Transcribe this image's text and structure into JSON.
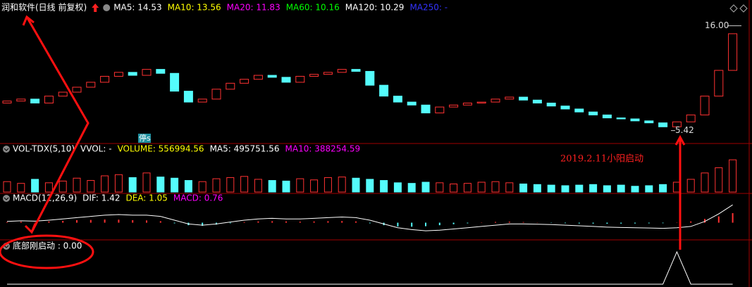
{
  "chart_data": [
    {
      "type": "candlestick",
      "legend": [
        {
          "text": "润和软件(日线 前复权)",
          "color": "#ffffff"
        },
        {
          "text": "MA5: 14.53",
          "color": "#ffffff"
        },
        {
          "text": "MA10: 13.56",
          "color": "#ffff00"
        },
        {
          "text": "MA20: 11.83",
          "color": "#ff00ff"
        },
        {
          "text": "MA60: 10.16",
          "color": "#00ff00"
        },
        {
          "text": "MA120: 10.29",
          "color": "#ffffff"
        },
        {
          "text": "MA250: -",
          "color": "#3333ff"
        }
      ],
      "open": [
        8.2,
        8.4,
        8.6,
        8.2,
        8.9,
        9.3,
        9.8,
        10.3,
        10.9,
        11.3,
        11.0,
        11.6,
        11.2,
        9.4,
        8.3,
        8.6,
        9.6,
        10.2,
        10.6,
        11.0,
        10.8,
        10.3,
        10.9,
        11.1,
        11.3,
        11.6,
        11.4,
        10.0,
        8.9,
        8.3,
        8.0,
        7.2,
        7.8,
        8.0,
        8.2,
        8.3,
        8.6,
        8.8,
        8.5,
        8.2,
        7.9,
        7.6,
        7.3,
        7.0,
        6.7,
        6.6,
        6.4,
        6.2,
        5.8,
        6.3,
        7.0,
        8.9,
        11.5
      ],
      "close": [
        8.4,
        8.6,
        8.2,
        8.9,
        9.3,
        9.8,
        10.3,
        10.9,
        11.3,
        11.0,
        11.6,
        11.2,
        9.4,
        8.3,
        8.6,
        9.6,
        10.2,
        10.6,
        11.0,
        10.8,
        10.3,
        10.9,
        11.1,
        11.3,
        11.6,
        11.4,
        10.0,
        8.9,
        8.3,
        8.0,
        7.2,
        7.8,
        8.0,
        8.2,
        8.3,
        8.6,
        8.8,
        8.5,
        8.2,
        7.9,
        7.6,
        7.3,
        7.0,
        6.7,
        6.6,
        6.4,
        6.2,
        5.8,
        6.3,
        7.0,
        8.9,
        11.5,
        15.2
      ],
      "up_color": "#ff3232",
      "down_color": "#54fcfc",
      "ylim": [
        4.4,
        16.9
      ],
      "annotations": [
        {
          "text": "16.00",
          "value": 16.0
        },
        {
          "text": "5.42",
          "value": 5.42
        }
      ]
    },
    {
      "type": "bar",
      "legend": [
        {
          "text": "VOL-TDX(5,10)",
          "color": "#ffffff"
        },
        {
          "text": "VVOL: -",
          "color": "#ffffff"
        },
        {
          "text": "VOLUME: 556994.56",
          "color": "#ffff00"
        },
        {
          "text": "MA5: 495751.56",
          "color": "#ffffff"
        },
        {
          "text": "MA10: 388254.59",
          "color": "#ff00ff"
        }
      ],
      "values": [
        180000,
        150000,
        220000,
        160000,
        190000,
        240000,
        200000,
        280000,
        300000,
        250000,
        330000,
        260000,
        240000,
        200000,
        180000,
        230000,
        250000,
        270000,
        220000,
        200000,
        190000,
        230000,
        210000,
        250000,
        260000,
        240000,
        220000,
        200000,
        160000,
        150000,
        170000,
        160000,
        140000,
        150000,
        170000,
        180000,
        160000,
        140000,
        130000,
        120000,
        110000,
        120000,
        130000,
        110000,
        120000,
        100000,
        110000,
        130000,
        170000,
        220000,
        330000,
        420000,
        556994.56
      ],
      "ylim": [
        0,
        620000
      ]
    },
    {
      "type": "macd",
      "legend": [
        {
          "text": "MACD(12,26,9)",
          "color": "#ffffff"
        },
        {
          "text": "DIF: 1.42",
          "color": "#ffffff"
        },
        {
          "text": "DEA: 1.05",
          "color": "#ffff00"
        },
        {
          "text": "MACD: 0.76",
          "color": "#ff00ff"
        }
      ],
      "values": [
        0.05,
        0.08,
        0.04,
        0.1,
        0.15,
        0.2,
        0.22,
        0.25,
        0.24,
        0.2,
        0.18,
        0.12,
        -0.05,
        -0.2,
        -0.25,
        -0.15,
        -0.05,
        0.05,
        0.1,
        0.12,
        0.1,
        0.08,
        0.1,
        0.12,
        0.13,
        0.1,
        -0.05,
        -0.2,
        -0.3,
        -0.32,
        -0.28,
        -0.2,
        -0.12,
        -0.05,
        0.02,
        0.06,
        0.08,
        0.05,
        0.02,
        -0.02,
        -0.04,
        -0.06,
        -0.07,
        -0.08,
        -0.07,
        -0.06,
        -0.05,
        -0.04,
        0.02,
        0.1,
        0.3,
        0.5,
        0.76
      ],
      "dif": [
        0.1,
        0.15,
        0.12,
        0.2,
        0.3,
        0.4,
        0.5,
        0.6,
        0.65,
        0.6,
        0.6,
        0.5,
        0.2,
        -0.1,
        -0.2,
        -0.1,
        0.05,
        0.2,
        0.3,
        0.35,
        0.3,
        0.3,
        0.35,
        0.4,
        0.45,
        0.4,
        0.2,
        -0.1,
        -0.4,
        -0.55,
        -0.65,
        -0.6,
        -0.5,
        -0.4,
        -0.3,
        -0.2,
        -0.1,
        -0.1,
        -0.12,
        -0.15,
        -0.2,
        -0.25,
        -0.3,
        -0.35,
        -0.38,
        -0.4,
        -0.42,
        -0.45,
        -0.4,
        -0.3,
        0.1,
        0.7,
        1.42
      ],
      "up_color": "#ff3232",
      "down_color": "#54fcfc",
      "line_color": "#ffffff",
      "ylim": [
        -1.2,
        1.6
      ]
    },
    {
      "type": "line",
      "legend": [
        {
          "text": "底部刚启动 : 0.00",
          "color": "#ffffff"
        }
      ],
      "values": [
        0,
        0,
        0,
        0,
        0,
        0,
        0,
        0,
        0,
        0,
        0,
        0,
        0,
        0,
        0,
        0,
        0,
        0,
        0,
        0,
        0,
        0,
        0,
        0,
        0,
        0,
        0,
        0,
        0,
        0,
        0,
        0,
        0,
        0,
        0,
        0,
        0,
        0,
        0,
        0,
        0,
        0,
        0,
        0,
        0,
        0,
        0,
        0,
        1,
        0,
        0,
        0,
        0
      ],
      "color": "#ffffff",
      "ylim": [
        0,
        1
      ]
    }
  ],
  "overlay": {
    "note": "2019.2.11小阳启动",
    "tag": "停s"
  }
}
